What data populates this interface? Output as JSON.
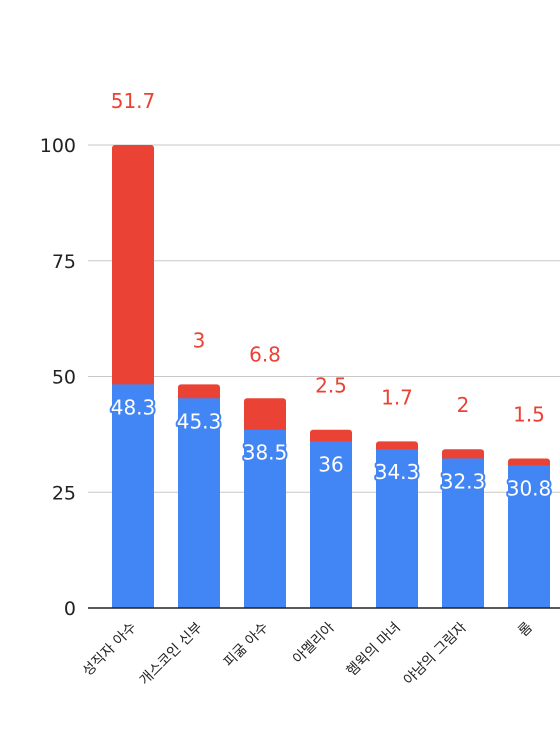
{
  "chart_data": {
    "type": "bar",
    "stacked": true,
    "categories": [
      "성직자 아수",
      "개스코인 신부",
      "피굶 아수",
      "아멜리아",
      "헴윅의 마녀",
      "야남의 그림자",
      "롬"
    ],
    "series": [
      {
        "values": [
          48.3,
          45.3,
          38.5,
          36,
          34.3,
          32.3,
          30.8
        ],
        "color": "#4285f4"
      },
      {
        "values": [
          51.7,
          3,
          6.8,
          2.5,
          1.7,
          2,
          1.5
        ],
        "color": "#ea4335"
      }
    ],
    "yticks": [
      0,
      25,
      50,
      75,
      100
    ],
    "ylim": [
      0,
      100
    ],
    "grid": true,
    "title": "",
    "xlabel": "",
    "ylabel": ""
  }
}
